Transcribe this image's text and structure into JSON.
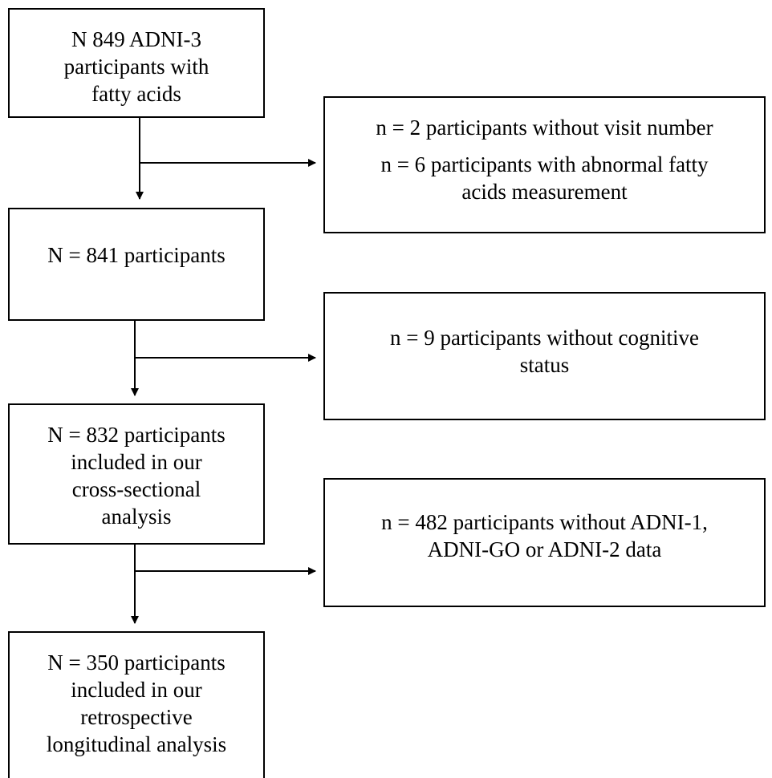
{
  "flowchart": {
    "boxes": [
      {
        "lines": [
          "N 849 ADNI-3",
          "participants with",
          "fatty acids"
        ]
      },
      {
        "lines": [
          "N = 841 participants"
        ]
      },
      {
        "lines": [
          "N = 832 participants",
          "included in our",
          "cross-sectional",
          "analysis"
        ]
      },
      {
        "lines": [
          "N = 350 participants",
          "included in our",
          "retrospective",
          "longitudinal analysis"
        ]
      }
    ],
    "exclusions": [
      {
        "items": [
          {
            "lines": [
              "n = 2 participants without visit number"
            ]
          },
          {
            "lines": [
              "n = 6 participants with abnormal fatty",
              "acids measurement"
            ]
          }
        ]
      },
      {
        "items": [
          {
            "lines": [
              "n = 9 participants without cognitive",
              "status"
            ]
          }
        ]
      },
      {
        "items": [
          {
            "lines": [
              "n = 482 participants without ADNI-1,",
              "ADNI-GO or ADNI-2 data"
            ]
          }
        ]
      }
    ]
  },
  "colors": {
    "line": "#000000",
    "background": "#ffffff"
  }
}
